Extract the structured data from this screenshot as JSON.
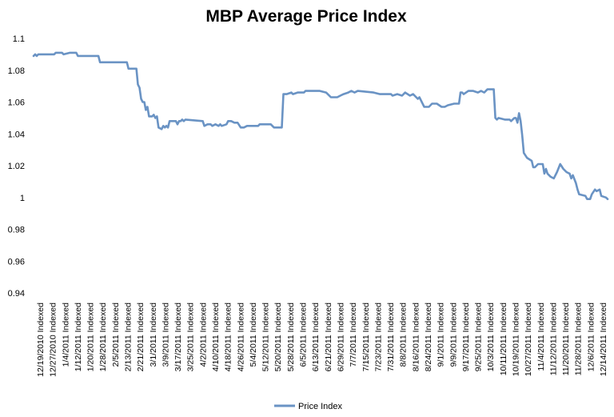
{
  "chart_data": {
    "type": "line",
    "title": "MBP Average Price Index",
    "xlabel": "",
    "ylabel": "",
    "ylim": [
      0.94,
      1.1
    ],
    "ytick_labels": [
      "0.94",
      "0.96",
      "0.98",
      "1",
      "1.02",
      "1.04",
      "1.06",
      "1.08",
      "1.1"
    ],
    "grid": false,
    "legend": "bottom",
    "x_tick_labels": [
      "12/19/2010 Indexed",
      "12/27/2010 Indexed",
      "1/4/2011 Indexed",
      "1/12/2011 Indexed",
      "1/20/2011 Indexed",
      "1/28/2011 Indexed",
      "2/5/2011 Indexed",
      "2/13/2011 Indexed",
      "2/21/2011 Indexed",
      "3/1/2011 Indexed",
      "3/9/2011 Indexed",
      "3/17/2011 Indexed",
      "3/25/2011 Indexed",
      "4/2/2011 Indexed",
      "4/10/2011 Indexed",
      "4/18/2011 Indexed",
      "4/26/2011 Indexed",
      "5/4/2011 Indexed",
      "5/12/2011 Indexed",
      "5/20/2011 Indexed",
      "5/28/2011 Indexed",
      "6/5/2011 Indexed",
      "6/13/2011 Indexed",
      "6/21/2011 Indexed",
      "6/29/2011 Indexed",
      "7/7/2011 Indexed",
      "7/15/2011 Indexed",
      "7/23/2011 Indexed",
      "7/31/2011 Indexed",
      "8/8/2011 Indexed",
      "8/16/2011 Indexed",
      "8/24/2011 Indexed",
      "9/1/2011 Indexed",
      "9/9/2011 Indexed",
      "9/17/2011 Indexed",
      "9/25/2011 Indexed",
      "10/3/2011 Indexed",
      "10/11/2011 Indexed",
      "10/19/2011 Indexed",
      "10/27/2011 Indexed",
      "11/4/2011 Indexed",
      "11/12/2011 Indexed",
      "11/20/2011 Indexed",
      "11/28/2011 Indexed",
      "12/6/2011 Indexed",
      "12/14/2011 Indexed"
    ],
    "series": [
      {
        "name": "Price Index",
        "color": "#6a93c4",
        "points": [
          [
            "2010-12-19",
            1.089
          ],
          [
            "2010-12-20",
            1.09
          ],
          [
            "2010-12-21",
            1.089
          ],
          [
            "2010-12-22",
            1.09
          ],
          [
            "2010-12-27",
            1.09
          ],
          [
            "2011-01-01",
            1.09
          ],
          [
            "2011-01-02",
            1.091
          ],
          [
            "2011-01-06",
            1.091
          ],
          [
            "2011-01-07",
            1.09
          ],
          [
            "2011-01-11",
            1.091
          ],
          [
            "2011-01-15",
            1.091
          ],
          [
            "2011-01-16",
            1.089
          ],
          [
            "2011-01-22",
            1.089
          ],
          [
            "2011-01-24",
            1.089
          ],
          [
            "2011-01-29",
            1.089
          ],
          [
            "2011-01-30",
            1.085
          ],
          [
            "2011-02-12",
            1.085
          ],
          [
            "2011-02-16",
            1.085
          ],
          [
            "2011-02-17",
            1.081
          ],
          [
            "2011-02-22",
            1.081
          ],
          [
            "2011-02-23",
            1.071
          ],
          [
            "2011-02-24",
            1.069
          ],
          [
            "2011-02-25",
            1.062
          ],
          [
            "2011-02-26",
            1.06
          ],
          [
            "2011-02-27",
            1.06
          ],
          [
            "2011-02-28",
            1.055
          ],
          [
            "2011-03-01",
            1.057
          ],
          [
            "2011-03-02",
            1.051
          ],
          [
            "2011-03-04",
            1.051
          ],
          [
            "2011-03-05",
            1.052
          ],
          [
            "2011-03-06",
            1.05
          ],
          [
            "2011-03-07",
            1.051
          ],
          [
            "2011-03-08",
            1.044
          ],
          [
            "2011-03-10",
            1.043
          ],
          [
            "2011-03-11",
            1.045
          ],
          [
            "2011-03-12",
            1.044
          ],
          [
            "2011-03-13",
            1.045
          ],
          [
            "2011-03-14",
            1.044
          ],
          [
            "2011-03-15",
            1.048
          ],
          [
            "2011-03-19",
            1.048
          ],
          [
            "2011-03-20",
            1.046
          ],
          [
            "2011-03-21",
            1.048
          ],
          [
            "2011-03-22",
            1.048
          ],
          [
            "2011-03-23",
            1.049
          ],
          [
            "2011-03-24",
            1.048
          ],
          [
            "2011-03-25",
            1.049
          ],
          [
            "2011-04-05",
            1.048
          ],
          [
            "2011-04-06",
            1.045
          ],
          [
            "2011-04-08",
            1.046
          ],
          [
            "2011-04-10",
            1.046
          ],
          [
            "2011-04-11",
            1.045
          ],
          [
            "2011-04-13",
            1.046
          ],
          [
            "2011-04-15",
            1.045
          ],
          [
            "2011-04-16",
            1.046
          ],
          [
            "2011-04-17",
            1.045
          ],
          [
            "2011-04-20",
            1.046
          ],
          [
            "2011-04-21",
            1.048
          ],
          [
            "2011-04-23",
            1.048
          ],
          [
            "2011-04-25",
            1.047
          ],
          [
            "2011-04-27",
            1.047
          ],
          [
            "2011-04-29",
            1.044
          ],
          [
            "2011-04-30",
            1.044
          ],
          [
            "2011-05-01",
            1.044
          ],
          [
            "2011-05-03",
            1.045
          ],
          [
            "2011-05-10",
            1.045
          ],
          [
            "2011-05-11",
            1.046
          ],
          [
            "2011-05-18",
            1.046
          ],
          [
            "2011-05-20",
            1.044
          ],
          [
            "2011-05-25",
            1.044
          ],
          [
            "2011-05-26",
            1.065
          ],
          [
            "2011-05-28",
            1.065
          ],
          [
            "2011-05-31",
            1.066
          ],
          [
            "2011-06-01",
            1.065
          ],
          [
            "2011-06-04",
            1.066
          ],
          [
            "2011-06-08",
            1.066
          ],
          [
            "2011-06-09",
            1.067
          ],
          [
            "2011-06-12",
            1.067
          ],
          [
            "2011-06-16",
            1.067
          ],
          [
            "2011-06-18",
            1.067
          ],
          [
            "2011-06-22",
            1.066
          ],
          [
            "2011-06-25",
            1.063
          ],
          [
            "2011-06-29",
            1.063
          ],
          [
            "2011-07-01",
            1.064
          ],
          [
            "2011-07-03",
            1.065
          ],
          [
            "2011-07-06",
            1.066
          ],
          [
            "2011-07-08",
            1.067
          ],
          [
            "2011-07-10",
            1.066
          ],
          [
            "2011-07-12",
            1.067
          ],
          [
            "2011-07-22",
            1.066
          ],
          [
            "2011-07-26",
            1.065
          ],
          [
            "2011-08-02",
            1.065
          ],
          [
            "2011-08-03",
            1.064
          ],
          [
            "2011-08-06",
            1.065
          ],
          [
            "2011-08-09",
            1.064
          ],
          [
            "2011-08-11",
            1.066
          ],
          [
            "2011-08-14",
            1.064
          ],
          [
            "2011-08-16",
            1.065
          ],
          [
            "2011-08-19",
            1.062
          ],
          [
            "2011-08-20",
            1.063
          ],
          [
            "2011-08-23",
            1.057
          ],
          [
            "2011-08-26",
            1.057
          ],
          [
            "2011-08-28",
            1.059
          ],
          [
            "2011-08-31",
            1.059
          ],
          [
            "2011-09-03",
            1.057
          ],
          [
            "2011-09-05",
            1.057
          ],
          [
            "2011-09-07",
            1.058
          ],
          [
            "2011-09-11",
            1.059
          ],
          [
            "2011-09-14",
            1.059
          ],
          [
            "2011-09-15",
            1.066
          ],
          [
            "2011-09-16",
            1.066
          ],
          [
            "2011-09-17",
            1.065
          ],
          [
            "2011-09-20",
            1.067
          ],
          [
            "2011-09-23",
            1.067
          ],
          [
            "2011-09-26",
            1.066
          ],
          [
            "2011-09-28",
            1.067
          ],
          [
            "2011-09-30",
            1.066
          ],
          [
            "2011-10-02",
            1.068
          ],
          [
            "2011-10-06",
            1.068
          ],
          [
            "2011-10-07",
            1.05
          ],
          [
            "2011-10-08",
            1.049
          ],
          [
            "2011-10-09",
            1.05
          ],
          [
            "2011-10-13",
            1.049
          ],
          [
            "2011-10-16",
            1.049
          ],
          [
            "2011-10-17",
            1.048
          ],
          [
            "2011-10-19",
            1.05
          ],
          [
            "2011-10-20",
            1.05
          ],
          [
            "2011-10-21",
            1.047
          ],
          [
            "2011-10-22",
            1.053
          ],
          [
            "2011-10-23",
            1.048
          ],
          [
            "2011-10-24",
            1.039
          ],
          [
            "2011-10-25",
            1.028
          ],
          [
            "2011-10-27",
            1.025
          ],
          [
            "2011-10-30",
            1.023
          ],
          [
            "2011-10-31",
            1.019
          ],
          [
            "2011-11-01",
            1.019
          ],
          [
            "2011-11-03",
            1.021
          ],
          [
            "2011-11-06",
            1.021
          ],
          [
            "2011-11-07",
            1.015
          ],
          [
            "2011-11-08",
            1.018
          ],
          [
            "2011-11-09",
            1.015
          ],
          [
            "2011-11-11",
            1.013
          ],
          [
            "2011-11-13",
            1.012
          ],
          [
            "2011-11-15",
            1.016
          ],
          [
            "2011-11-17",
            1.021
          ],
          [
            "2011-11-19",
            1.018
          ],
          [
            "2011-11-21",
            1.016
          ],
          [
            "2011-11-23",
            1.015
          ],
          [
            "2011-11-24",
            1.012
          ],
          [
            "2011-11-25",
            1.014
          ],
          [
            "2011-11-27",
            1.009
          ],
          [
            "2011-11-28",
            1.005
          ],
          [
            "2011-11-29",
            1.002
          ],
          [
            "2011-12-03",
            1.001
          ],
          [
            "2011-12-04",
            0.999
          ],
          [
            "2011-12-06",
            0.999
          ],
          [
            "2011-12-07",
            1.002
          ],
          [
            "2011-12-09",
            1.005
          ],
          [
            "2011-12-10",
            1.004
          ],
          [
            "2011-12-12",
            1.005
          ],
          [
            "2011-12-13",
            1.001
          ],
          [
            "2011-12-16",
            1.0
          ],
          [
            "2011-12-17",
            0.999
          ]
        ]
      }
    ]
  }
}
